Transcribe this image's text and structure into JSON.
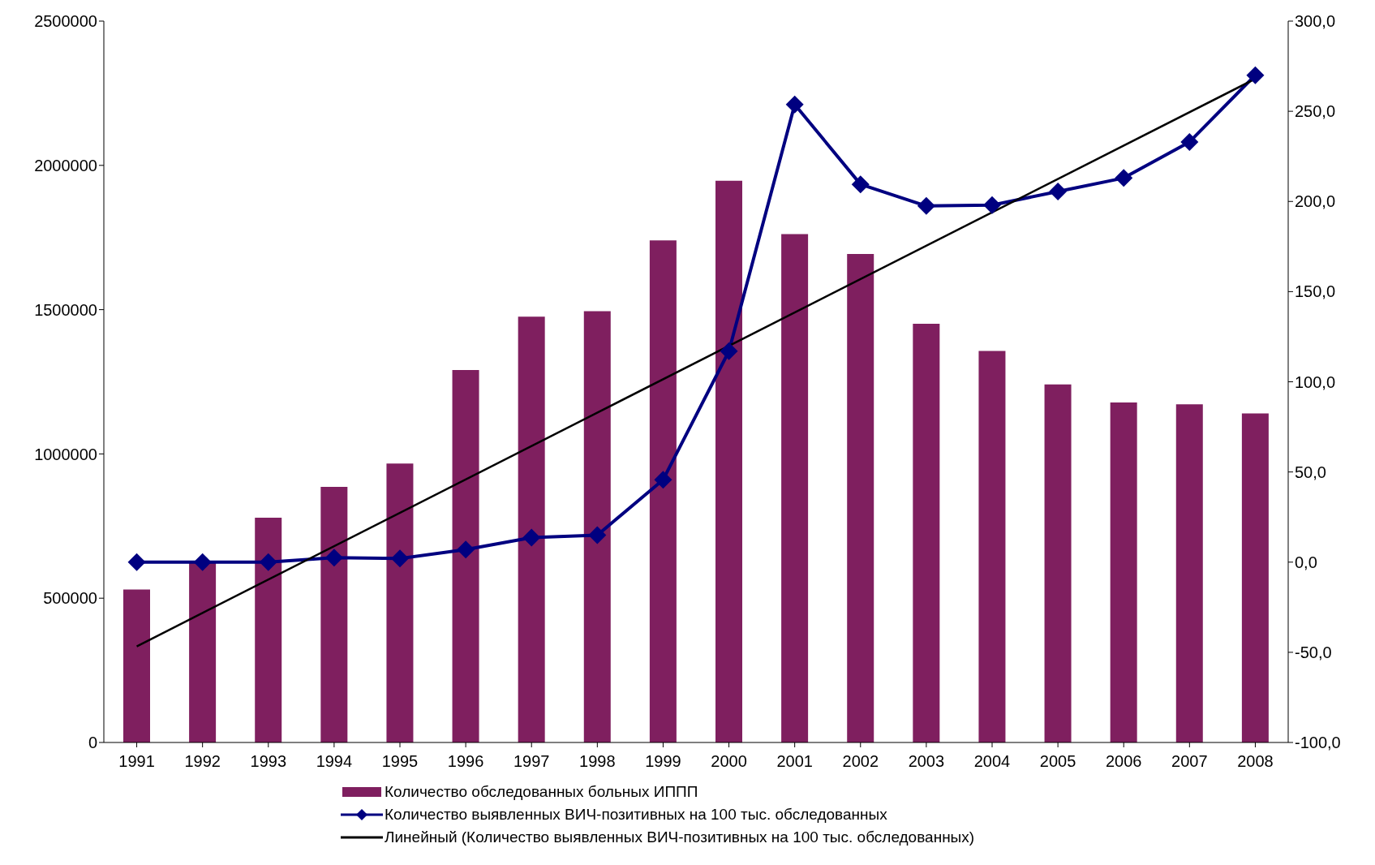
{
  "chart_data": {
    "type": "bar",
    "categories": [
      "1991",
      "1992",
      "1993",
      "1994",
      "1995",
      "1996",
      "1997",
      "1998",
      "1999",
      "2000",
      "2001",
      "2002",
      "2003",
      "2004",
      "2005",
      "2006",
      "2007",
      "2008"
    ],
    "series": [
      {
        "name": "Количество обследованных больных ИППП",
        "color": "#7f1f5f",
        "values": [
          530000,
          622000,
          779000,
          886000,
          967000,
          1291000,
          1476000,
          1495000,
          1740000,
          1947000,
          1762000,
          1693000,
          1451000,
          1357000,
          1241000,
          1178000,
          1172000,
          1140000
        ]
      },
      {
        "name": "Количество выявленных ВИЧ-позитивных на 100 тыс. обследованных",
        "type": "line",
        "axis": "y2",
        "marker": "diamond",
        "color": "#000080",
        "values": [
          0,
          0,
          0,
          2.5,
          2,
          7,
          13.6,
          15,
          45.7,
          117,
          253.8,
          209.5,
          197.5,
          198,
          205.5,
          213,
          233,
          270
        ]
      },
      {
        "name": "Линейный (Количество выявленных ВИЧ-позитивных на 100 тыс. обследованных)",
        "type": "line",
        "axis": "y2",
        "marker": "none",
        "color": "#000000",
        "values": [
          -46.7,
          null,
          null,
          null,
          null,
          null,
          null,
          null,
          null,
          null,
          null,
          null,
          null,
          null,
          null,
          null,
          null,
          268
        ]
      }
    ],
    "ylim": [
      0,
      2500000
    ],
    "yticks": [
      0,
      500000,
      1000000,
      1500000,
      2000000,
      2500000
    ],
    "y2lim": [
      -100,
      300
    ],
    "y2ticks": [
      {
        "value": -100,
        "label": "-100,0"
      },
      {
        "value": -50,
        "label": "-50,0"
      },
      {
        "value": 0,
        "label": "0,0"
      },
      {
        "value": 50,
        "label": "50,0"
      },
      {
        "value": 100,
        "label": "100,0"
      },
      {
        "value": 150,
        "label": "150,0"
      },
      {
        "value": 200,
        "label": "200,0"
      },
      {
        "value": 250,
        "label": "250,0"
      },
      {
        "value": 300,
        "label": "300,0"
      }
    ],
    "grid": false,
    "legend": "bottom"
  }
}
